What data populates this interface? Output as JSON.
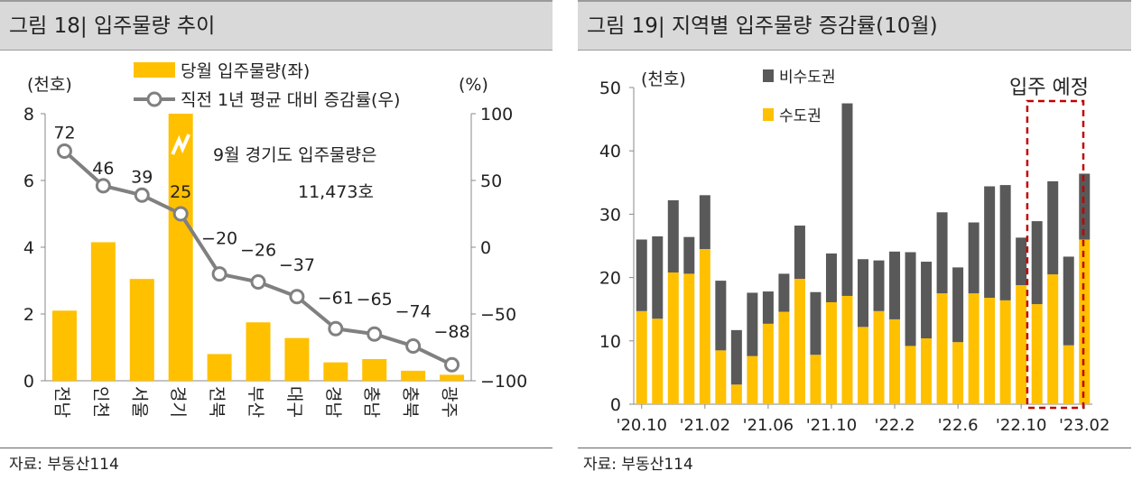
{
  "chart_data": [
    {
      "type": "bar",
      "title": "그림 18| 입주물량 추이",
      "left_unit": "(천호)",
      "right_unit": "(%)",
      "categories": [
        "전남",
        "인천",
        "서울",
        "경기",
        "전북",
        "부산",
        "대구",
        "경남",
        "충남",
        "충북",
        "광주"
      ],
      "series": [
        {
          "name": "당월 입주물량(좌)",
          "type": "bar",
          "axis": "left",
          "values": [
            2.1,
            4.15,
            3.05,
            11.473,
            0.8,
            1.75,
            1.28,
            0.55,
            0.65,
            0.3,
            0.18
          ]
        },
        {
          "name": "직전 1년 평균 대비 증감률(우)",
          "type": "line",
          "axis": "right",
          "values": [
            72,
            46,
            39,
            25,
            -20,
            -26,
            -37,
            -61,
            -65,
            -74,
            -88
          ]
        }
      ],
      "point_labels": [
        "72",
        "46",
        "39",
        "25",
        "−20",
        "−26",
        "−37",
        "−61",
        "−65",
        "−74",
        "−88"
      ],
      "left_ylim": [
        0,
        8
      ],
      "left_ticks": [
        "0",
        "2",
        "4",
        "6",
        "8"
      ],
      "right_ylim": [
        -100,
        100
      ],
      "right_ticks": [
        "−100",
        "−50",
        "0",
        "50",
        "100"
      ],
      "annotation_line1": "9월 경기도 입주물량은",
      "annotation_line2": "11,473호",
      "source": "자료: 부동산114"
    },
    {
      "type": "bar",
      "stacked": true,
      "title": "그림 19| 지역별 입주물량 증감률(10월)",
      "unit": "(천호)",
      "x": [
        "'20.10",
        "'20.11",
        "'20.12",
        "'21.01",
        "'21.02",
        "'21.03",
        "'21.04",
        "'21.05",
        "'21.06",
        "'21.07",
        "'21.08",
        "'21.09",
        "'21.10",
        "'21.11",
        "'21.12",
        "'22.01",
        "'22.02",
        "'22.03",
        "'22.04",
        "'22.05",
        "'22.06",
        "'22.07",
        "'22.08",
        "'22.09",
        "'22.10",
        "'22.11",
        "'22.12",
        "'23.01",
        "'23.02"
      ],
      "tick_labels": [
        "'20.10",
        "'21.02",
        "'21.06",
        "'21.10",
        "'22.2",
        "'22.6",
        "'22.10",
        "'23.02"
      ],
      "series": [
        {
          "name": "수도권",
          "color": "#ffc000",
          "values": [
            14.7,
            13.5,
            20.8,
            20.6,
            24.5,
            8.5,
            3.1,
            7.6,
            12.7,
            14.6,
            19.8,
            7.8,
            16.1,
            17.1,
            12.2,
            14.7,
            13.4,
            9.2,
            10.4,
            17.5,
            9.8,
            17.5,
            16.8,
            16.4,
            18.8,
            15.8,
            20.5,
            9.3,
            26.0
          ]
        },
        {
          "name": "비수도권",
          "color": "#595959",
          "values": [
            11.3,
            13.0,
            11.4,
            5.8,
            8.5,
            11.0,
            8.6,
            10.0,
            5.1,
            6.0,
            8.4,
            9.9,
            7.7,
            30.4,
            10.7,
            8.0,
            10.7,
            14.8,
            12.1,
            12.8,
            11.8,
            11.2,
            17.6,
            18.2,
            7.5,
            13.1,
            14.7,
            14.0,
            10.4
          ]
        }
      ],
      "ylim": [
        0,
        50
      ],
      "y_ticks": [
        "0",
        "10",
        "20",
        "30",
        "40",
        "50"
      ],
      "annotation": "입주 예정",
      "source": "자료: 부동산114"
    }
  ]
}
